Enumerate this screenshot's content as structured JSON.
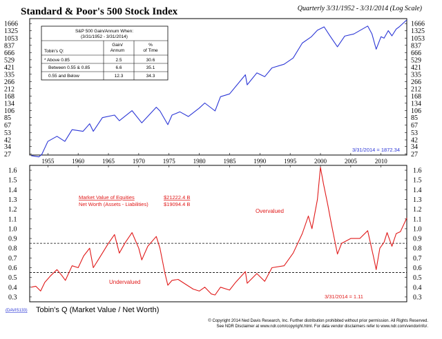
{
  "header": {
    "title": "Standard & Poor's 500 Stock Index",
    "subtitle": "Quarterly 3/31/1952 - 3/31/2014 (Log Scale)"
  },
  "colors": {
    "spx_line": "#2a35d6",
    "q_line": "#e01818",
    "annotation_blue": "#2a35d6",
    "annotation_red": "#e01818",
    "axis": "#000000"
  },
  "table": {
    "title_line1": "S&P 500 Gain/Annum When:",
    "title_line2": "(3/31/1952 - 3/31/2014)",
    "col_headers": [
      "Tobin's Q:",
      "Gain/\nAnnum",
      "%\nof Time"
    ],
    "rows": [
      {
        "label": "* Above 0.85",
        "gain": "2.5",
        "pct": "30.6"
      },
      {
        "label": "Between 0.55 & 0.85",
        "gain": "6.6",
        "pct": "35.1"
      },
      {
        "label": "0.55 and Below",
        "gain": "12.3",
        "pct": "34.3"
      }
    ]
  },
  "footer": {
    "code": "(DAVIS133)",
    "lower_title": "Tobin's Q (Market Value / Net Worth)",
    "copyright": "© Copyright 2014 Ned Davis Research, Inc. Further distribution prohibited without prior permission. All Rights Reserved.",
    "disclaimer": "See NDR Disclaimer at www.ndr.com/copyright.html. For data vendor disclaimers refer to www.ndr.com/vendorinfo/."
  },
  "chart_data": [
    {
      "type": "line",
      "title": "Standard & Poor's 500 Stock Index",
      "y_scale": "log",
      "ylim": [
        26,
        1950
      ],
      "xlim": [
        1952.0,
        2014.25
      ],
      "y_ticks": [
        27,
        34,
        42,
        53,
        67,
        85,
        106,
        134,
        168,
        212,
        266,
        335,
        421,
        529,
        666,
        837,
        1053,
        1325,
        1666
      ],
      "x_ticks": [
        1955,
        1960,
        1965,
        1970,
        1975,
        1980,
        1985,
        1990,
        1995,
        2000,
        2005,
        2010
      ],
      "annotation": "3/31/2014 = 1872.34",
      "series": [
        {
          "x": [
            1952.25,
            1953.5,
            1954.0,
            1955.0,
            1956.5,
            1957.8,
            1959.0,
            1960.8,
            1961.9,
            1962.5,
            1964.0,
            1966.0,
            1966.8,
            1968.9,
            1970.5,
            1972.9,
            1973.5,
            1974.8,
            1975.5,
            1976.8,
            1978.2,
            1980.0,
            1980.9,
            1982.6,
            1983.5,
            1985.0,
            1987.6,
            1987.9,
            1989.5,
            1990.8,
            1992.0,
            1994.0,
            1995.5,
            1997.0,
            1998.5,
            1999.5,
            2000.6,
            2001.5,
            2002.8,
            2004.0,
            2005.5,
            2007.8,
            2008.5,
            2009.2,
            2010.0,
            2010.5,
            2011.2,
            2011.8,
            2012.5,
            2013.0,
            2014.25
          ],
          "y": [
            25.5,
            24.5,
            26.5,
            40,
            47,
            40,
            58,
            55,
            70,
            55,
            85,
            92,
            77,
            106,
            72,
            118,
            105,
            68,
            92,
            102,
            88,
            115,
            135,
            105,
            165,
            180,
            330,
            240,
            350,
            310,
            410,
            460,
            560,
            900,
            1100,
            1350,
            1500,
            1150,
            800,
            1120,
            1200,
            1540,
            1200,
            740,
            1100,
            1050,
            1330,
            1130,
            1400,
            1500,
            1872
          ]
        }
      ]
    },
    {
      "type": "line",
      "title": "Tobin's Q (Market Value / Net Worth)",
      "ylim": [
        0.25,
        1.65
      ],
      "xlim": [
        1952.0,
        2014.25
      ],
      "y_ticks": [
        0.3,
        0.4,
        0.5,
        0.6,
        0.7,
        0.8,
        0.9,
        1.0,
        1.1,
        1.2,
        1.3,
        1.4,
        1.5,
        1.6
      ],
      "x_ticks": [
        1955,
        1960,
        1965,
        1970,
        1975,
        1980,
        1985,
        1990,
        1995,
        2000,
        2005,
        2010
      ],
      "reference_lines": [
        0.85,
        0.55
      ],
      "labels": {
        "market_value": "Market Value of Equities",
        "market_value_amount": "$21222.4 B",
        "net_worth": "Net Worth (Assets - Liabilities)",
        "net_worth_amount": "$19094.4 B",
        "overvalued": "Overvalued",
        "undervalued": "Undervalued",
        "current": "3/31/2014 = 1.11"
      },
      "series": [
        {
          "x": [
            1952.25,
            1953.0,
            1953.8,
            1954.5,
            1955.5,
            1956.5,
            1957.3,
            1957.9,
            1959.0,
            1960.0,
            1960.9,
            1961.9,
            1962.5,
            1963.5,
            1965.0,
            1966.0,
            1966.8,
            1967.8,
            1968.9,
            1970.0,
            1970.5,
            1971.5,
            1972.9,
            1973.5,
            1974.3,
            1974.8,
            1975.5,
            1976.5,
            1978.0,
            1979.0,
            1980.0,
            1980.9,
            1982.0,
            1982.6,
            1983.5,
            1985.0,
            1986.0,
            1987.6,
            1987.9,
            1989.5,
            1990.8,
            1992.0,
            1994.0,
            1995.5,
            1997.0,
            1998.0,
            1998.6,
            1999.5,
            2000.0,
            2000.5,
            2001.2,
            2001.8,
            2002.8,
            2003.5,
            2005.0,
            2006.5,
            2007.8,
            2008.3,
            2008.8,
            2009.2,
            2009.8,
            2010.5,
            2011.0,
            2011.8,
            2012.5,
            2013.2,
            2014.25
          ],
          "y": [
            0.4,
            0.41,
            0.36,
            0.45,
            0.52,
            0.58,
            0.52,
            0.47,
            0.62,
            0.6,
            0.72,
            0.8,
            0.6,
            0.7,
            0.85,
            0.94,
            0.75,
            0.86,
            0.96,
            0.8,
            0.68,
            0.82,
            0.92,
            0.8,
            0.55,
            0.42,
            0.47,
            0.48,
            0.42,
            0.38,
            0.36,
            0.4,
            0.33,
            0.32,
            0.4,
            0.37,
            0.45,
            0.56,
            0.44,
            0.54,
            0.46,
            0.6,
            0.62,
            0.75,
            0.95,
            1.13,
            1.0,
            1.3,
            1.63,
            1.46,
            1.25,
            1.05,
            0.74,
            0.85,
            0.9,
            0.9,
            0.98,
            0.84,
            0.7,
            0.58,
            0.8,
            0.86,
            0.96,
            0.82,
            0.95,
            0.97,
            1.11
          ]
        }
      ]
    }
  ]
}
